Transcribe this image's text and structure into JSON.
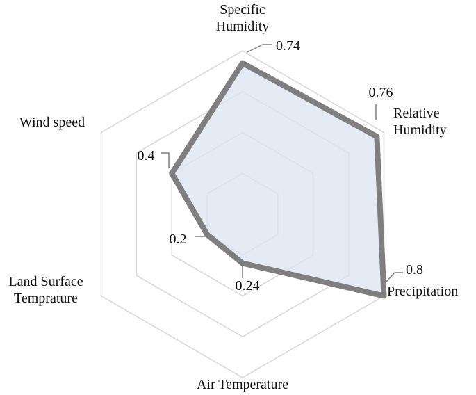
{
  "chart_data": {
    "type": "radar",
    "categories": [
      "Specific Humidity",
      "Relative Humidity",
      "Precipitation",
      "Air Temperature",
      "Land Surface Temprature",
      "Wind speed"
    ],
    "values": [
      0.74,
      0.76,
      0.8,
      0.24,
      0.2,
      0.4
    ],
    "value_labels": [
      "0.74",
      "0.76",
      "0.8",
      "0.24",
      "0.2",
      "0.4"
    ],
    "rlim": [
      0,
      0.8
    ],
    "gridlines": [
      0.2,
      0.4,
      0.6,
      0.8
    ],
    "grid": true,
    "legend": "none",
    "colors": {
      "series_line": "#7f7f7f",
      "series_fill": "#dce4f2",
      "grid": "#d9d9d9",
      "leader": "#7f7f7f"
    }
  }
}
